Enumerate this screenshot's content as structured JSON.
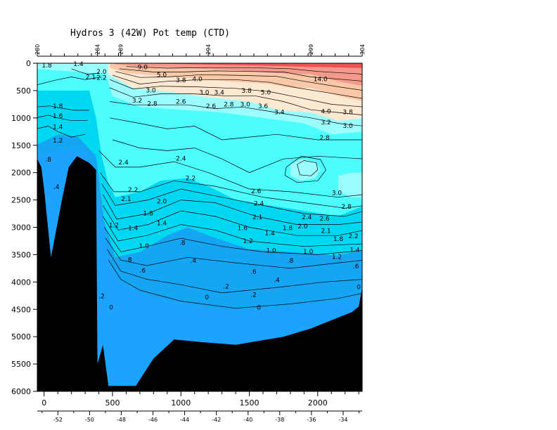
{
  "chart_data": {
    "type": "contour",
    "title": "Hydros 3 (42W) Pot temp (CTD)",
    "xlabel": "",
    "ylabel": "",
    "y_reversed": true,
    "ylim": [
      6000,
      0
    ],
    "xlim": [
      -50,
      2325
    ],
    "distance_ticks": [
      "0",
      "500",
      "1000",
      "1500",
      "2000"
    ],
    "distance_tick_values": [
      0,
      500,
      1000,
      1500,
      2000
    ],
    "depth_ticks": [
      "0",
      "500",
      "1000",
      "1500",
      "2000",
      "2500",
      "3000",
      "3500",
      "4000",
      "4500",
      "5000",
      "5500",
      "6000"
    ],
    "depth_tick_values": [
      0,
      500,
      1000,
      1500,
      2000,
      2500,
      3000,
      3500,
      4000,
      4500,
      5000,
      5500,
      6000
    ],
    "longitude_ticks": [
      "-52",
      "-50",
      "-48",
      "-46",
      "-44",
      "-42",
      "-40",
      "-38",
      "-36",
      "-34"
    ],
    "longitude_tick_values": [
      -52,
      -50,
      -48,
      -46,
      -44,
      -42,
      -40,
      -38,
      -36,
      -34
    ],
    "longitude_range": [
      -53.3,
      -32.8
    ],
    "stations": [
      "280",
      "284",
      "289",
      "294",
      "299",
      "304"
    ],
    "station_distances": [
      -50,
      390,
      560,
      1200,
      1950,
      2325
    ],
    "color_bands": [
      {
        "min": -0.5,
        "max": 0.0,
        "color": "#1ca3ff"
      },
      {
        "min": 0.0,
        "max": 0.8,
        "color": "#15a5f2"
      },
      {
        "min": 0.8,
        "max": 1.8,
        "color": "#00d8f2"
      },
      {
        "min": 1.8,
        "max": 2.8,
        "color": "#4dfdfd"
      },
      {
        "min": 2.8,
        "max": 3.2,
        "color": "#9bfdfd"
      },
      {
        "min": 3.2,
        "max": 4.0,
        "color": "#fde8d2"
      },
      {
        "min": 4.0,
        "max": 6.0,
        "color": "#f8c8a8"
      },
      {
        "min": 6.0,
        "max": 9.0,
        "color": "#f4998c"
      },
      {
        "min": 9.0,
        "max": 16.0,
        "color": "#ef5354"
      }
    ],
    "contour_labels": [
      {
        "x": 20,
        "y": 80,
        "text": "1.8"
      },
      {
        "x": 250,
        "y": 50,
        "text": "1.4"
      },
      {
        "x": 340,
        "y": 290,
        "text": "2.1"
      },
      {
        "x": 420,
        "y": 190,
        "text": "2.0"
      },
      {
        "x": 420,
        "y": 300,
        "text": "2.2"
      },
      {
        "x": 100,
        "y": 820,
        "text": "1.8"
      },
      {
        "x": 100,
        "y": 1000,
        "text": "1.6"
      },
      {
        "x": 100,
        "y": 1200,
        "text": "1.4"
      },
      {
        "x": 100,
        "y": 1450,
        "text": "1.2"
      },
      {
        "x": 30,
        "y": 1800,
        "text": ".8"
      },
      {
        "x": 90,
        "y": 2300,
        "text": ".4"
      },
      {
        "x": 720,
        "y": 110,
        "text": "9.0"
      },
      {
        "x": 860,
        "y": 250,
        "text": "5.0"
      },
      {
        "x": 1000,
        "y": 350,
        "text": "3.8"
      },
      {
        "x": 1120,
        "y": 330,
        "text": "4.0"
      },
      {
        "x": 780,
        "y": 530,
        "text": "3.0"
      },
      {
        "x": 680,
        "y": 720,
        "text": "3.2"
      },
      {
        "x": 790,
        "y": 780,
        "text": "2.8"
      },
      {
        "x": 1170,
        "y": 570,
        "text": "3.0"
      },
      {
        "x": 1280,
        "y": 570,
        "text": "3.4"
      },
      {
        "x": 1480,
        "y": 540,
        "text": "3.8"
      },
      {
        "x": 1620,
        "y": 570,
        "text": "5.0"
      },
      {
        "x": 1000,
        "y": 740,
        "text": "2.6"
      },
      {
        "x": 1220,
        "y": 820,
        "text": "2.6"
      },
      {
        "x": 1350,
        "y": 790,
        "text": "2.8"
      },
      {
        "x": 1470,
        "y": 790,
        "text": "3.0"
      },
      {
        "x": 1600,
        "y": 820,
        "text": "3.6"
      },
      {
        "x": 1720,
        "y": 930,
        "text": "3.4"
      },
      {
        "x": 2020,
        "y": 330,
        "text": "14.0"
      },
      {
        "x": 2060,
        "y": 920,
        "text": "4.0"
      },
      {
        "x": 2220,
        "y": 930,
        "text": "3.8"
      },
      {
        "x": 2060,
        "y": 1120,
        "text": "3.2"
      },
      {
        "x": 2220,
        "y": 1180,
        "text": "3.0"
      },
      {
        "x": 2050,
        "y": 1400,
        "text": "2.8"
      },
      {
        "x": 1000,
        "y": 1780,
        "text": "2.4"
      },
      {
        "x": 580,
        "y": 1850,
        "text": "2.4"
      },
      {
        "x": 1070,
        "y": 2140,
        "text": "2.2"
      },
      {
        "x": 650,
        "y": 2350,
        "text": "2.2"
      },
      {
        "x": 600,
        "y": 2520,
        "text": "2.1"
      },
      {
        "x": 860,
        "y": 2560,
        "text": "2.0"
      },
      {
        "x": 760,
        "y": 2780,
        "text": "1.8"
      },
      {
        "x": 510,
        "y": 3000,
        "text": "1.2"
      },
      {
        "x": 650,
        "y": 3050,
        "text": "1.4"
      },
      {
        "x": 860,
        "y": 2960,
        "text": "1.4"
      },
      {
        "x": 1550,
        "y": 2380,
        "text": "2.6"
      },
      {
        "x": 1570,
        "y": 2600,
        "text": "2.4"
      },
      {
        "x": 1560,
        "y": 2850,
        "text": "2.1"
      },
      {
        "x": 1450,
        "y": 3050,
        "text": "1.6"
      },
      {
        "x": 1650,
        "y": 3150,
        "text": "1.4"
      },
      {
        "x": 1490,
        "y": 3290,
        "text": "1.2"
      },
      {
        "x": 1780,
        "y": 3050,
        "text": "1.8"
      },
      {
        "x": 1920,
        "y": 2850,
        "text": "2.4"
      },
      {
        "x": 1890,
        "y": 3020,
        "text": "2.0"
      },
      {
        "x": 2060,
        "y": 3100,
        "text": "2.1"
      },
      {
        "x": 2050,
        "y": 2880,
        "text": "2.6"
      },
      {
        "x": 2210,
        "y": 2660,
        "text": "2.8"
      },
      {
        "x": 2260,
        "y": 3200,
        "text": "2.2"
      },
      {
        "x": 2150,
        "y": 3250,
        "text": "1.8"
      },
      {
        "x": 2270,
        "y": 3450,
        "text": "1.4"
      },
      {
        "x": 2140,
        "y": 3580,
        "text": "1.2"
      },
      {
        "x": 1660,
        "y": 3460,
        "text": "1.0"
      },
      {
        "x": 1930,
        "y": 3480,
        "text": "1.0"
      },
      {
        "x": 2140,
        "y": 2410,
        "text": "3.0"
      },
      {
        "x": 2280,
        "y": 3750,
        "text": ".6"
      },
      {
        "x": 2300,
        "y": 4130,
        "text": "0"
      },
      {
        "x": 730,
        "y": 3380,
        "text": "1.0"
      },
      {
        "x": 1010,
        "y": 3320,
        "text": ".8"
      },
      {
        "x": 1800,
        "y": 3650,
        "text": ".8"
      },
      {
        "x": 620,
        "y": 3630,
        "text": ".8"
      },
      {
        "x": 1090,
        "y": 3650,
        "text": ".4"
      },
      {
        "x": 720,
        "y": 3830,
        "text": ".6"
      },
      {
        "x": 1530,
        "y": 3850,
        "text": ".6"
      },
      {
        "x": 1700,
        "y": 4000,
        "text": ".4"
      },
      {
        "x": 1330,
        "y": 4120,
        "text": ".2"
      },
      {
        "x": 1530,
        "y": 4270,
        "text": ".2"
      },
      {
        "x": 1190,
        "y": 4320,
        "text": "0"
      },
      {
        "x": 1570,
        "y": 4500,
        "text": "0"
      },
      {
        "x": 420,
        "y": 4300,
        "text": ".2"
      },
      {
        "x": 490,
        "y": 4500,
        "text": "0"
      }
    ]
  }
}
